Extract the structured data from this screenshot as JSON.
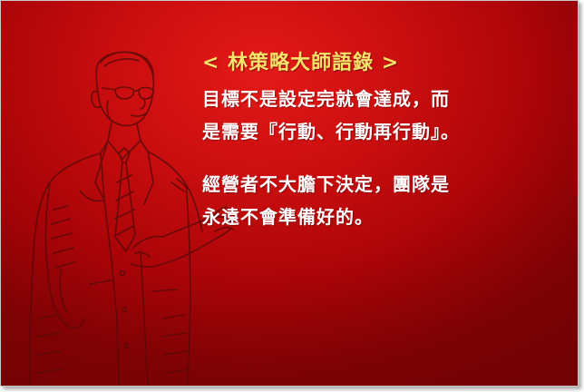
{
  "title": "< 林策略大師語錄 >",
  "quotes": [
    {
      "lines": [
        "目標不是設定完就會達成，而",
        "是需要『行動、行動再行動』。"
      ]
    },
    {
      "lines": [
        "經營者不大膽下決定，團隊是",
        "永遠不會準備好的。"
      ]
    }
  ],
  "colors": {
    "background": "#c80d0e",
    "title": "#f4e36a",
    "text": "#ffffff",
    "sketch": "#5a0a08"
  },
  "illustration": "line-sketch-of-speaker-in-suit"
}
